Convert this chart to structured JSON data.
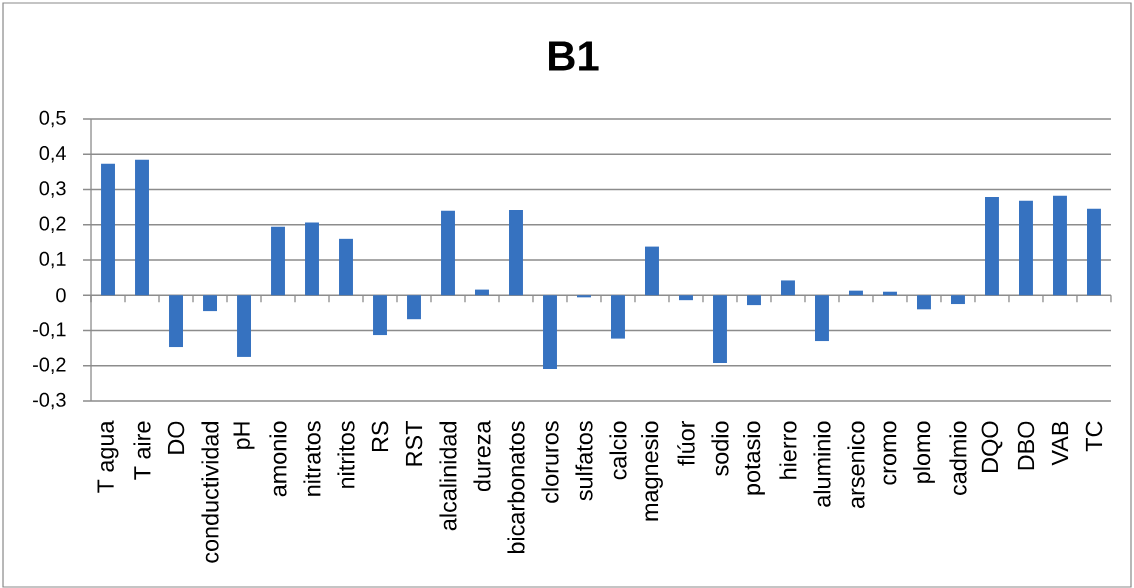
{
  "chart_data": {
    "type": "bar",
    "title": "B1",
    "categories": [
      "T agua",
      "T aire",
      "DO",
      "conductividad",
      "pH",
      "amonio",
      "nitratos",
      "nitritos",
      "RS",
      "RST",
      "alcalinidad",
      "dureza",
      "bicarbonatos",
      "cloruros",
      "sulfatos",
      "calcio",
      "magnesio",
      "flúor",
      "sodio",
      "potasio",
      "hierro",
      "aluminio",
      "arsenico",
      "cromo",
      "plomo",
      "cadmio",
      "DQO",
      "DBO",
      "VAB",
      "TC"
    ],
    "values": [
      0.373,
      0.384,
      -0.147,
      -0.045,
      -0.175,
      0.194,
      0.206,
      0.16,
      -0.113,
      -0.068,
      0.24,
      0.016,
      0.242,
      -0.209,
      -0.006,
      -0.123,
      0.138,
      -0.014,
      -0.192,
      -0.028,
      0.042,
      -0.13,
      0.013,
      0.01,
      -0.04,
      -0.025,
      0.279,
      0.268,
      0.282,
      0.245
    ],
    "color": "#3672c0",
    "ylim": [
      -0.3,
      0.5
    ],
    "yticks": [
      {
        "value": -0.3,
        "label": "-0,3"
      },
      {
        "value": -0.2,
        "label": "-0,2"
      },
      {
        "value": -0.1,
        "label": "-0,1"
      },
      0,
      {
        "value": 0.1,
        "label": "0,1"
      },
      {
        "value": 0.2,
        "label": "0,2"
      },
      {
        "value": 0.3,
        "label": "0,3"
      },
      {
        "value": 0.4,
        "label": "0,4"
      },
      {
        "value": 0.5,
        "label": "0,5"
      }
    ],
    "grid": "y"
  }
}
